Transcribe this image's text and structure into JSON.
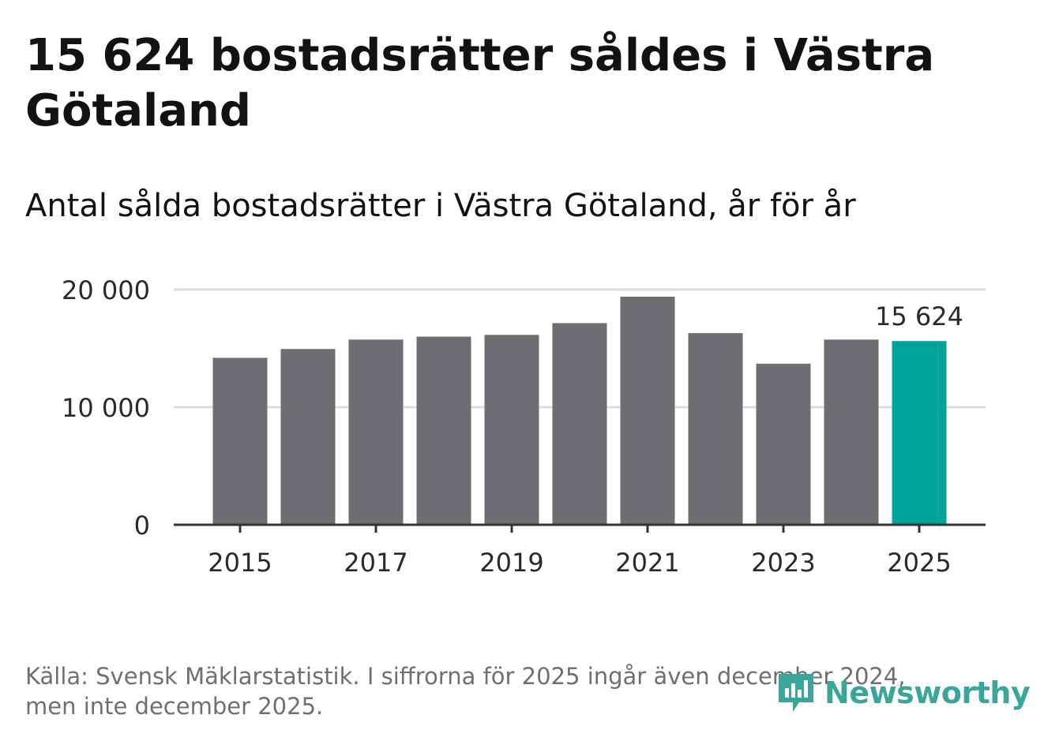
{
  "title": "15 624 bostadsrätter såldes i Västra Götaland",
  "subtitle": "Antal sålda bostadsrätter i Västra Götaland, år för år",
  "footer": {
    "source_line1": "Källa: Svensk Mäklarstatistik. I siffrorna för 2025 ingår även december 2024,",
    "source_line2": "men inte december 2025."
  },
  "logo": {
    "text": "Newsworthy",
    "icon": "newsworthy-logo-icon"
  },
  "colors": {
    "bar": "#6e6d72",
    "highlight": "#00a398",
    "grid": "#dcdcdc",
    "axis": "#333333",
    "brand": "#3aa69a"
  },
  "chart_data": {
    "type": "bar",
    "categories": [
      "2015",
      "2016",
      "2017",
      "2018",
      "2019",
      "2020",
      "2021",
      "2022",
      "2023",
      "2024",
      "2025"
    ],
    "values": [
      14200,
      14950,
      15750,
      16000,
      16150,
      17150,
      19400,
      16300,
      13700,
      15750,
      15624
    ],
    "highlight_index": 10,
    "highlight_label": "15 624",
    "ylim": [
      0,
      20000
    ],
    "yticks": [
      0,
      10000,
      20000
    ],
    "ytick_labels": [
      "0",
      "10 000",
      "20 000"
    ],
    "xtick_labels": [
      "2015",
      "2017",
      "2019",
      "2021",
      "2023",
      "2025"
    ],
    "xlabel": "",
    "ylabel": ""
  }
}
